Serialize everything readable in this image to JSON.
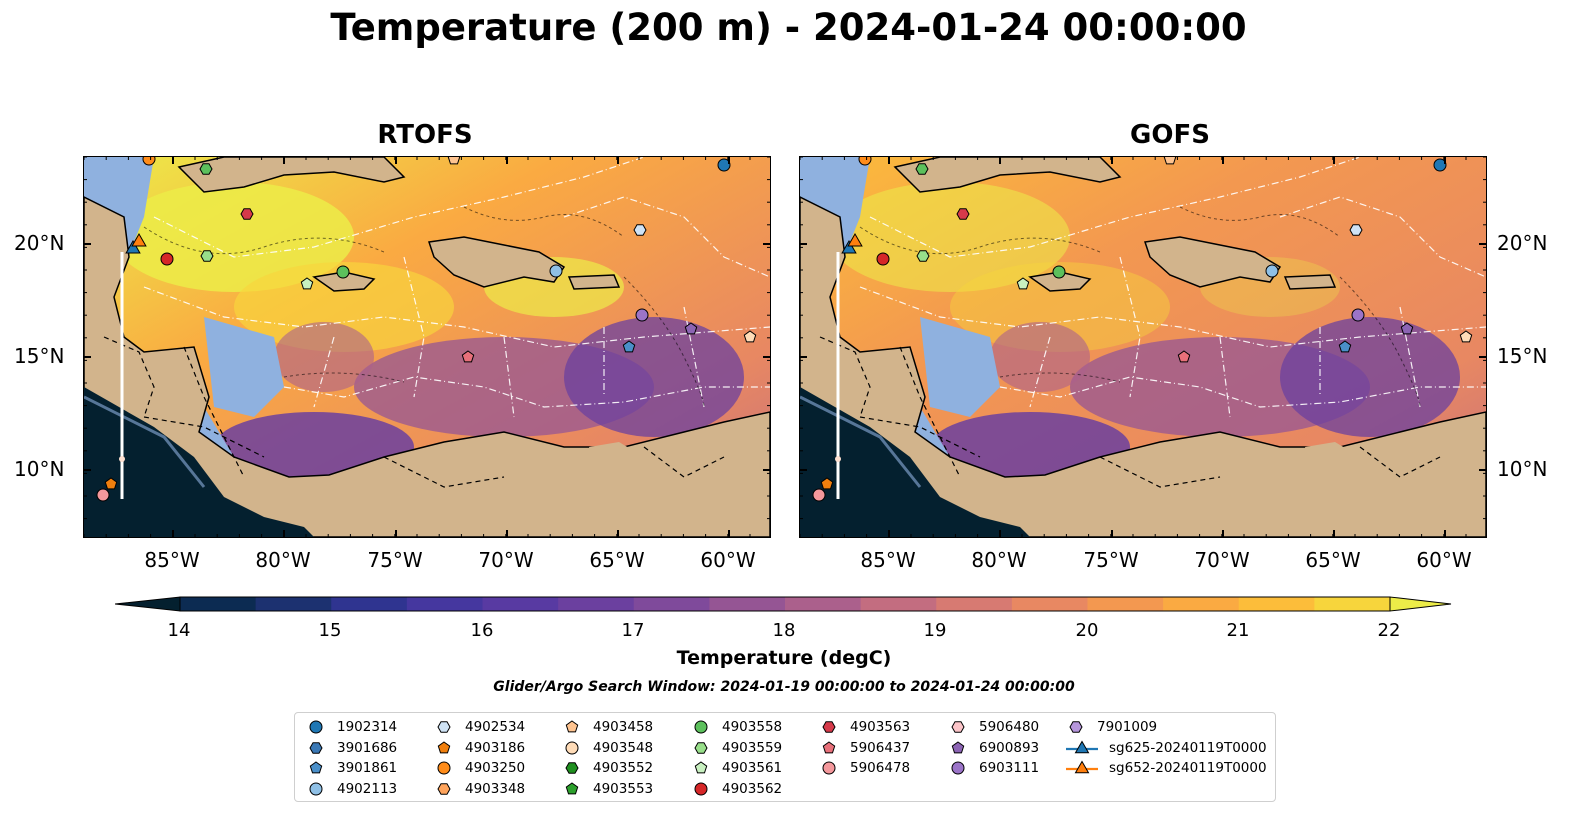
{
  "title": "Temperature (200 m) - 2024-01-24 00:00:00",
  "panels": [
    {
      "title": "RTOFS"
    },
    {
      "title": "GOFS"
    }
  ],
  "axes": {
    "lon_ticks": [
      "85°W",
      "80°W",
      "75°W",
      "70°W",
      "65°W",
      "60°W"
    ],
    "lat_ticks": [
      "20°N",
      "15°N",
      "10°N"
    ]
  },
  "colorbar": {
    "ticks": [
      "14",
      "15",
      "16",
      "17",
      "18",
      "19",
      "20",
      "21",
      "22"
    ],
    "label": "Temperature (degC)",
    "range": [
      14,
      22
    ],
    "extend": "both",
    "colors": [
      "#04202f",
      "#0c2b52",
      "#1c3170",
      "#2f3490",
      "#45379f",
      "#583aa2",
      "#6b409f",
      "#7f4a9b",
      "#955594",
      "#ab608c",
      "#c36d80",
      "#d77a72",
      "#e88862",
      "#f39850",
      "#faaa42",
      "#fcbd3a",
      "#f7d53c",
      "#ecec48"
    ]
  },
  "search_window": "Glider/Argo Search Window: 2024-01-19 00:00:00 to 2024-01-24 00:00:00",
  "colors": {
    "land": "#d2b48c",
    "shelf": "#8fb1df",
    "deep": "#04202f"
  },
  "legend": {
    "columns": [
      [
        {
          "label": "1902314",
          "marker": "circle",
          "color": "#1f77b4"
        },
        {
          "label": "3901686",
          "marker": "hexagon",
          "color": "#3a78b5"
        },
        {
          "label": "3901861",
          "marker": "pentagon",
          "color": "#4a8fc9"
        },
        {
          "label": "4902113",
          "marker": "circle",
          "color": "#8fc0e6"
        }
      ],
      [
        {
          "label": "4902534",
          "marker": "hexagon",
          "color": "#cfe3f5"
        },
        {
          "label": "4903186",
          "marker": "pentagon",
          "color": "#f07f0e"
        },
        {
          "label": "4903250",
          "marker": "circle",
          "color": "#ff8c1a"
        },
        {
          "label": "4903348",
          "marker": "hexagon",
          "color": "#ffa45c"
        }
      ],
      [
        {
          "label": "4903458",
          "marker": "pentagon",
          "color": "#ffc490"
        },
        {
          "label": "4903548",
          "marker": "circle",
          "color": "#ffdcb8"
        },
        {
          "label": "4903552",
          "marker": "hexagon",
          "color": "#1f8f1f"
        },
        {
          "label": "4903553",
          "marker": "pentagon",
          "color": "#2ca02c"
        }
      ],
      [
        {
          "label": "4903558",
          "marker": "circle",
          "color": "#5cc05c"
        },
        {
          "label": "4903559",
          "marker": "hexagon",
          "color": "#98df8a"
        },
        {
          "label": "4903561",
          "marker": "pentagon",
          "color": "#c8f0c0"
        },
        {
          "label": "4903562",
          "marker": "circle",
          "color": "#d62728"
        }
      ],
      [
        {
          "label": "4903563",
          "marker": "hexagon",
          "color": "#d63a4a"
        },
        {
          "label": "5906437",
          "marker": "pentagon",
          "color": "#e8707a"
        },
        {
          "label": "5906478",
          "marker": "circle",
          "color": "#f4989c"
        }
      ],
      [
        {
          "label": "5906480",
          "marker": "hexagon",
          "color": "#fbc4c8"
        },
        {
          "label": "6900893",
          "marker": "pentagon",
          "color": "#8c64b4"
        },
        {
          "label": "6903111",
          "marker": "circle",
          "color": "#9b74c8"
        }
      ],
      [
        {
          "label": "7901009",
          "marker": "hexagon",
          "color": "#b696dc"
        },
        {
          "label": "sg625-20240119T0000",
          "marker": "triangle-line",
          "color": "#1f77b4"
        },
        {
          "label": "sg652-20240119T0000",
          "marker": "triangle-line",
          "color": "#ff7f0e"
        }
      ]
    ]
  }
}
